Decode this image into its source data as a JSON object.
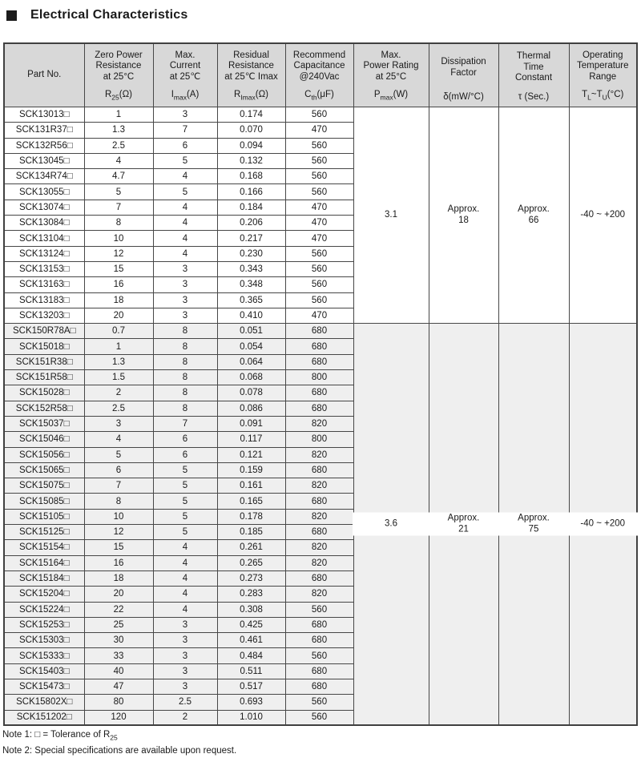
{
  "page": {
    "title": "Electrical Characteristics"
  },
  "table": {
    "columns": [
      {
        "id": "part-no",
        "label_lines": [
          "Part No."
        ],
        "symbol": []
      },
      {
        "id": "r25",
        "label_lines": [
          "Zero Power",
          "Resistance",
          "at 25°C"
        ],
        "symbol": [
          {
            "t": "R"
          },
          {
            "t": "25",
            "sub": true
          },
          {
            "t": "(Ω)"
          }
        ]
      },
      {
        "id": "imax",
        "label_lines": [
          "Max.",
          "Current",
          "at 25℃"
        ],
        "symbol": [
          {
            "t": "I"
          },
          {
            "t": "max",
            "sub": true
          },
          {
            "t": "(A)"
          }
        ]
      },
      {
        "id": "rimax",
        "label_lines": [
          "Residual",
          "Resistance",
          "at 25℃ Imax"
        ],
        "symbol": [
          {
            "t": "R"
          },
          {
            "t": "Imax",
            "sub": true
          },
          {
            "t": "(Ω)"
          }
        ]
      },
      {
        "id": "cth",
        "label_lines": [
          "Recommend",
          "Capacitance",
          "@240Vac"
        ],
        "symbol": [
          {
            "t": "C"
          },
          {
            "t": "th",
            "sub": true
          },
          {
            "t": "(μF)"
          }
        ]
      },
      {
        "id": "pmax",
        "label_lines": [
          "Max.",
          "Power Rating",
          "at 25°C"
        ],
        "symbol": [
          {
            "t": "P"
          },
          {
            "t": "max",
            "sub": true
          },
          {
            "t": "(W)"
          }
        ]
      },
      {
        "id": "dissipation",
        "label_lines": [
          "Dissipation",
          "Factor"
        ],
        "symbol": [
          {
            "t": "δ(mW/°C)"
          }
        ]
      },
      {
        "id": "thermal",
        "label_lines": [
          "Thermal",
          "Time",
          "Constant"
        ],
        "symbol": [
          {
            "t": "τ (Sec.)"
          }
        ]
      },
      {
        "id": "temp-range",
        "label_lines": [
          "Operating",
          "Temperature",
          "Range"
        ],
        "symbol": [
          {
            "t": "T"
          },
          {
            "t": "L",
            "sub": true
          },
          {
            "t": "~T"
          },
          {
            "t": "U",
            "sub": true
          },
          {
            "t": "(°C)"
          }
        ]
      }
    ],
    "groups": [
      {
        "merged": {
          "pmax": [
            "3.1"
          ],
          "dissipation": [
            "Approx.",
            "18"
          ],
          "thermal": [
            "Approx.",
            "66"
          ],
          "temp_range": [
            "-40 ~ +200"
          ]
        },
        "rows": [
          [
            "SCK13013□",
            "1",
            "3",
            "0.174",
            "560"
          ],
          [
            "SCK131R37□",
            "1.3",
            "7",
            "0.070",
            "470"
          ],
          [
            "SCK132R56□",
            "2.5",
            "6",
            "0.094",
            "560"
          ],
          [
            "SCK13045□",
            "4",
            "5",
            "0.132",
            "560"
          ],
          [
            "SCK134R74□",
            "4.7",
            "4",
            "0.168",
            "560"
          ],
          [
            "SCK13055□",
            "5",
            "5",
            "0.166",
            "560"
          ],
          [
            "SCK13074□",
            "7",
            "4",
            "0.184",
            "470"
          ],
          [
            "SCK13084□",
            "8",
            "4",
            "0.206",
            "470"
          ],
          [
            "SCK13104□",
            "10",
            "4",
            "0.217",
            "470"
          ],
          [
            "SCK13124□",
            "12",
            "4",
            "0.230",
            "560"
          ],
          [
            "SCK13153□",
            "15",
            "3",
            "0.343",
            "560"
          ],
          [
            "SCK13163□",
            "16",
            "3",
            "0.348",
            "560"
          ],
          [
            "SCK13183□",
            "18",
            "3",
            "0.365",
            "560"
          ],
          [
            "SCK13203□",
            "20",
            "3",
            "0.410",
            "470"
          ]
        ]
      },
      {
        "merged": {
          "pmax": [
            "3.6"
          ],
          "dissipation": [
            "Approx.",
            "21"
          ],
          "thermal": [
            "Approx.",
            "75"
          ],
          "temp_range": [
            "-40 ~ +200"
          ]
        },
        "rows": [
          [
            "SCK150R78A□",
            "0.7",
            "8",
            "0.051",
            "680"
          ],
          [
            "SCK15018□",
            "1",
            "8",
            "0.054",
            "680"
          ],
          [
            "SCK151R38□",
            "1.3",
            "8",
            "0.064",
            "680"
          ],
          [
            "SCK151R58□",
            "1.5",
            "8",
            "0.068",
            "800"
          ],
          [
            "SCK15028□",
            "2",
            "8",
            "0.078",
            "680"
          ],
          [
            "SCK152R58□",
            "2.5",
            "8",
            "0.086",
            "680"
          ],
          [
            "SCK15037□",
            "3",
            "7",
            "0.091",
            "820"
          ],
          [
            "SCK15046□",
            "4",
            "6",
            "0.117",
            "800"
          ],
          [
            "SCK15056□",
            "5",
            "6",
            "0.121",
            "820"
          ],
          [
            "SCK15065□",
            "6",
            "5",
            "0.159",
            "680"
          ],
          [
            "SCK15075□",
            "7",
            "5",
            "0.161",
            "820"
          ],
          [
            "SCK15085□",
            "8",
            "5",
            "0.165",
            "680"
          ],
          [
            "SCK15105□",
            "10",
            "5",
            "0.178",
            "820"
          ],
          [
            "SCK15125□",
            "12",
            "5",
            "0.185",
            "680"
          ],
          [
            "SCK15154□",
            "15",
            "4",
            "0.261",
            "820"
          ],
          [
            "SCK15164□",
            "16",
            "4",
            "0.265",
            "820"
          ],
          [
            "SCK15184□",
            "18",
            "4",
            "0.273",
            "680"
          ],
          [
            "SCK15204□",
            "20",
            "4",
            "0.283",
            "820"
          ],
          [
            "SCK15224□",
            "22",
            "4",
            "0.308",
            "560"
          ],
          [
            "SCK15253□",
            "25",
            "3",
            "0.425",
            "680"
          ],
          [
            "SCK15303□",
            "30",
            "3",
            "0.461",
            "680"
          ],
          [
            "SCK15333□",
            "33",
            "3",
            "0.484",
            "560"
          ],
          [
            "SCK15403□",
            "40",
            "3",
            "0.511",
            "680"
          ],
          [
            "SCK15473□",
            "47",
            "3",
            "0.517",
            "680"
          ],
          [
            "SCK15802X□",
            "80",
            "2.5",
            "0.693",
            "560"
          ],
          [
            "SCK151202□",
            "120",
            "2",
            "1.010",
            "560"
          ]
        ]
      }
    ]
  },
  "notes": {
    "note1_segments": [
      {
        "t": "Note 1: "
      },
      {
        "t": "□"
      },
      {
        "t": " = Tolerance of R"
      },
      {
        "t": "25",
        "sub": true
      }
    ],
    "note2": "Note 2: Special specifications are available upon request."
  },
  "colors": {
    "header_bg": "#d8d8d8",
    "group2_bg": "#efefef",
    "border": "#474747"
  }
}
